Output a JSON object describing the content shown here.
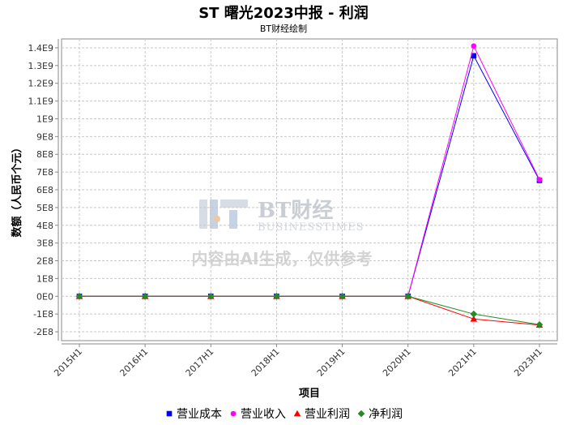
{
  "title": "ST 曙光2023中报 - 利润",
  "subtitle": "BT财经绘制",
  "watermark": {
    "main": "BT财经",
    "sub": "BUSINESSTIMES",
    "note": "内容由AI生成，仅供参考"
  },
  "chart_data": {
    "type": "line",
    "xlabel": "项目",
    "ylabel": "数额（人民币个元）",
    "categories": [
      "2015H1",
      "2016H1",
      "2017H1",
      "2018H1",
      "2019H1",
      "2020H1",
      "2021H1",
      "2023H1"
    ],
    "ylim": [
      -250000000,
      1450000000
    ],
    "yticks": [
      -200000000,
      -100000000,
      0,
      100000000,
      200000000,
      300000000,
      400000000,
      500000000,
      600000000,
      700000000,
      800000000,
      900000000,
      1000000000,
      1100000000,
      1200000000,
      1300000000,
      1400000000
    ],
    "ytick_labels": [
      "-2E8",
      "-1E8",
      "0E0",
      "1E8",
      "2E8",
      "3E8",
      "4E8",
      "5E8",
      "6E8",
      "7E8",
      "8E8",
      "9E8",
      "1E9",
      "1.1E9",
      "1.2E9",
      "1.3E9",
      "1.4E9"
    ],
    "grid": true,
    "legend_position": "bottom",
    "series": [
      {
        "name": "营业成本",
        "color": "#0000ff",
        "marker": "square",
        "values": [
          0,
          0,
          0,
          0,
          0,
          0,
          1355000000,
          653000000
        ]
      },
      {
        "name": "营业收入",
        "color": "#ff00ff",
        "marker": "circle",
        "values": [
          0,
          0,
          0,
          0,
          0,
          0,
          1410000000,
          657000000
        ]
      },
      {
        "name": "营业利润",
        "color": "#ff0000",
        "marker": "triangle",
        "values": [
          0,
          0,
          0,
          0,
          0,
          0,
          -128000000,
          -162000000
        ]
      },
      {
        "name": "净利润",
        "color": "#228b22",
        "marker": "diamond",
        "values": [
          0,
          0,
          0,
          0,
          0,
          0,
          -100000000,
          -160000000
        ]
      }
    ]
  }
}
